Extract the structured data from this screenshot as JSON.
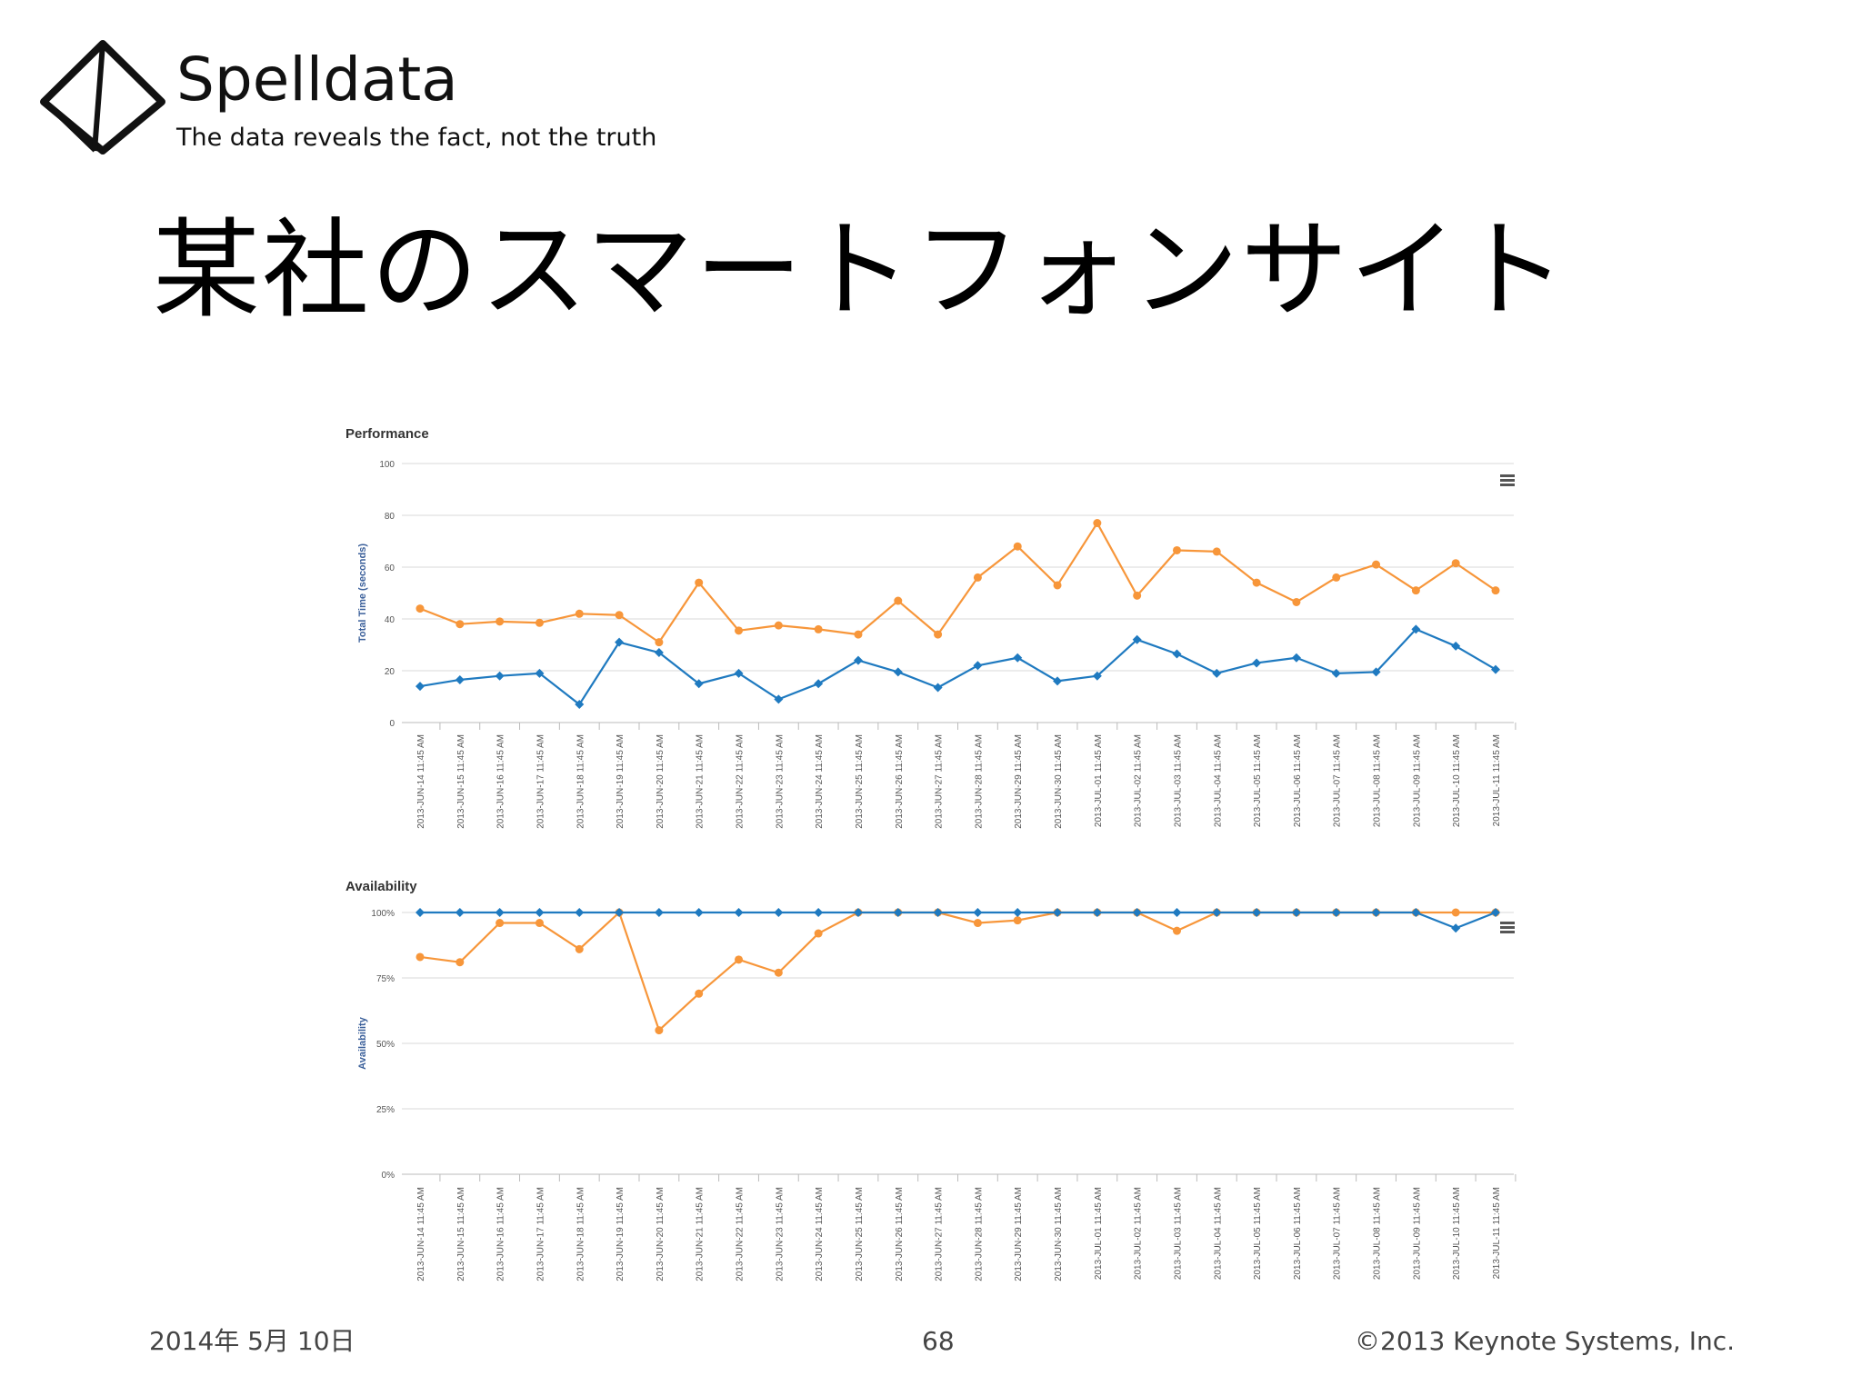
{
  "brand": {
    "name": "Spelldata",
    "tagline": "The data reveals the fact, not the truth",
    "logo_icon": "diamond-outline-icon"
  },
  "slide": {
    "title": "某社のスマートフォンサイト"
  },
  "footer": {
    "date": "2014年 5月 10日",
    "page": "68",
    "copyright": "©2013 Keynote Systems, Inc."
  },
  "colors": {
    "series_orange": "#f7963a",
    "series_blue": "#1f7ac0",
    "grid": "#d8d8d8",
    "axis_label": "#3a5f9a"
  },
  "menu_icon": "hamburger-menu-icon",
  "chart_data": [
    {
      "type": "line",
      "title": "Performance",
      "xlabel": "",
      "ylabel": "Total Time (seconds)",
      "ylim": [
        0,
        100
      ],
      "yticks": [
        "0",
        "20",
        "40",
        "60",
        "80",
        "100"
      ],
      "grid": true,
      "legend": "none",
      "categories": [
        "2013-JUN-14 11:45 AM",
        "2013-JUN-15 11:45 AM",
        "2013-JUN-16 11:45 AM",
        "2013-JUN-17 11:45 AM",
        "2013-JUN-18 11:45 AM",
        "2013-JUN-19 11:45 AM",
        "2013-JUN-20 11:45 AM",
        "2013-JUN-21 11:45 AM",
        "2013-JUN-22 11:45 AM",
        "2013-JUN-23 11:45 AM",
        "2013-JUN-24 11:45 AM",
        "2013-JUN-25 11:45 AM",
        "2013-JUN-26 11:45 AM",
        "2013-JUN-27 11:45 AM",
        "2013-JUN-28 11:45 AM",
        "2013-JUN-29 11:45 AM",
        "2013-JUN-30 11:45 AM",
        "2013-JUL-01 11:45 AM",
        "2013-JUL-02 11:45 AM",
        "2013-JUL-03 11:45 AM",
        "2013-JUL-04 11:45 AM",
        "2013-JUL-05 11:45 AM",
        "2013-JUL-06 11:45 AM",
        "2013-JUL-07 11:45 AM",
        "2013-JUL-08 11:45 AM",
        "2013-JUL-09 11:45 AM",
        "2013-JUL-10 11:45 AM",
        "2013-JUL-11 11:45 AM"
      ],
      "series": [
        {
          "color": "#f7963a",
          "marker": "circle",
          "values": [
            44,
            38,
            39,
            38.5,
            42,
            41.5,
            31,
            54,
            35.5,
            37.5,
            36,
            34,
            47,
            34,
            56,
            68,
            53,
            77,
            49,
            66.5,
            66,
            54,
            46.5,
            56,
            61,
            51,
            61.5,
            51
          ]
        },
        {
          "color": "#1f7ac0",
          "marker": "diamond",
          "values": [
            14,
            16.5,
            18,
            19,
            7,
            31,
            27,
            15,
            19,
            9,
            15,
            24,
            19.5,
            13.5,
            22,
            25,
            16,
            18,
            32,
            26.5,
            19,
            23,
            25,
            19,
            19.5,
            36,
            29.5,
            20.5
          ]
        }
      ]
    },
    {
      "type": "line",
      "title": "Availability",
      "xlabel": "",
      "ylabel": "Availability",
      "ylim": [
        0,
        100
      ],
      "yticks": [
        "0%",
        "25%",
        "50%",
        "75%",
        "100%"
      ],
      "grid": true,
      "legend": "none",
      "categories": [
        "2013-JUN-14 11:45 AM",
        "2013-JUN-15 11:45 AM",
        "2013-JUN-16 11:45 AM",
        "2013-JUN-17 11:45 AM",
        "2013-JUN-18 11:45 AM",
        "2013-JUN-19 11:45 AM",
        "2013-JUN-20 11:45 AM",
        "2013-JUN-21 11:45 AM",
        "2013-JUN-22 11:45 AM",
        "2013-JUN-23 11:45 AM",
        "2013-JUN-24 11:45 AM",
        "2013-JUN-25 11:45 AM",
        "2013-JUN-26 11:45 AM",
        "2013-JUN-27 11:45 AM",
        "2013-JUN-28 11:45 AM",
        "2013-JUN-29 11:45 AM",
        "2013-JUN-30 11:45 AM",
        "2013-JUL-01 11:45 AM",
        "2013-JUL-02 11:45 AM",
        "2013-JUL-03 11:45 AM",
        "2013-JUL-04 11:45 AM",
        "2013-JUL-05 11:45 AM",
        "2013-JUL-06 11:45 AM",
        "2013-JUL-07 11:45 AM",
        "2013-JUL-08 11:45 AM",
        "2013-JUL-09 11:45 AM",
        "2013-JUL-10 11:45 AM",
        "2013-JUL-11 11:45 AM"
      ],
      "series": [
        {
          "color": "#f7963a",
          "marker": "circle",
          "values": [
            83,
            81,
            96,
            96,
            86,
            100,
            55,
            69,
            82,
            77,
            92,
            100,
            100,
            100,
            96,
            97,
            100,
            100,
            100,
            93,
            100,
            100,
            100,
            100,
            100,
            100,
            100,
            100
          ]
        },
        {
          "color": "#1f7ac0",
          "marker": "diamond",
          "values": [
            100,
            100,
            100,
            100,
            100,
            100,
            100,
            100,
            100,
            100,
            100,
            100,
            100,
            100,
            100,
            100,
            100,
            100,
            100,
            100,
            100,
            100,
            100,
            100,
            100,
            100,
            94,
            100
          ]
        }
      ]
    }
  ]
}
